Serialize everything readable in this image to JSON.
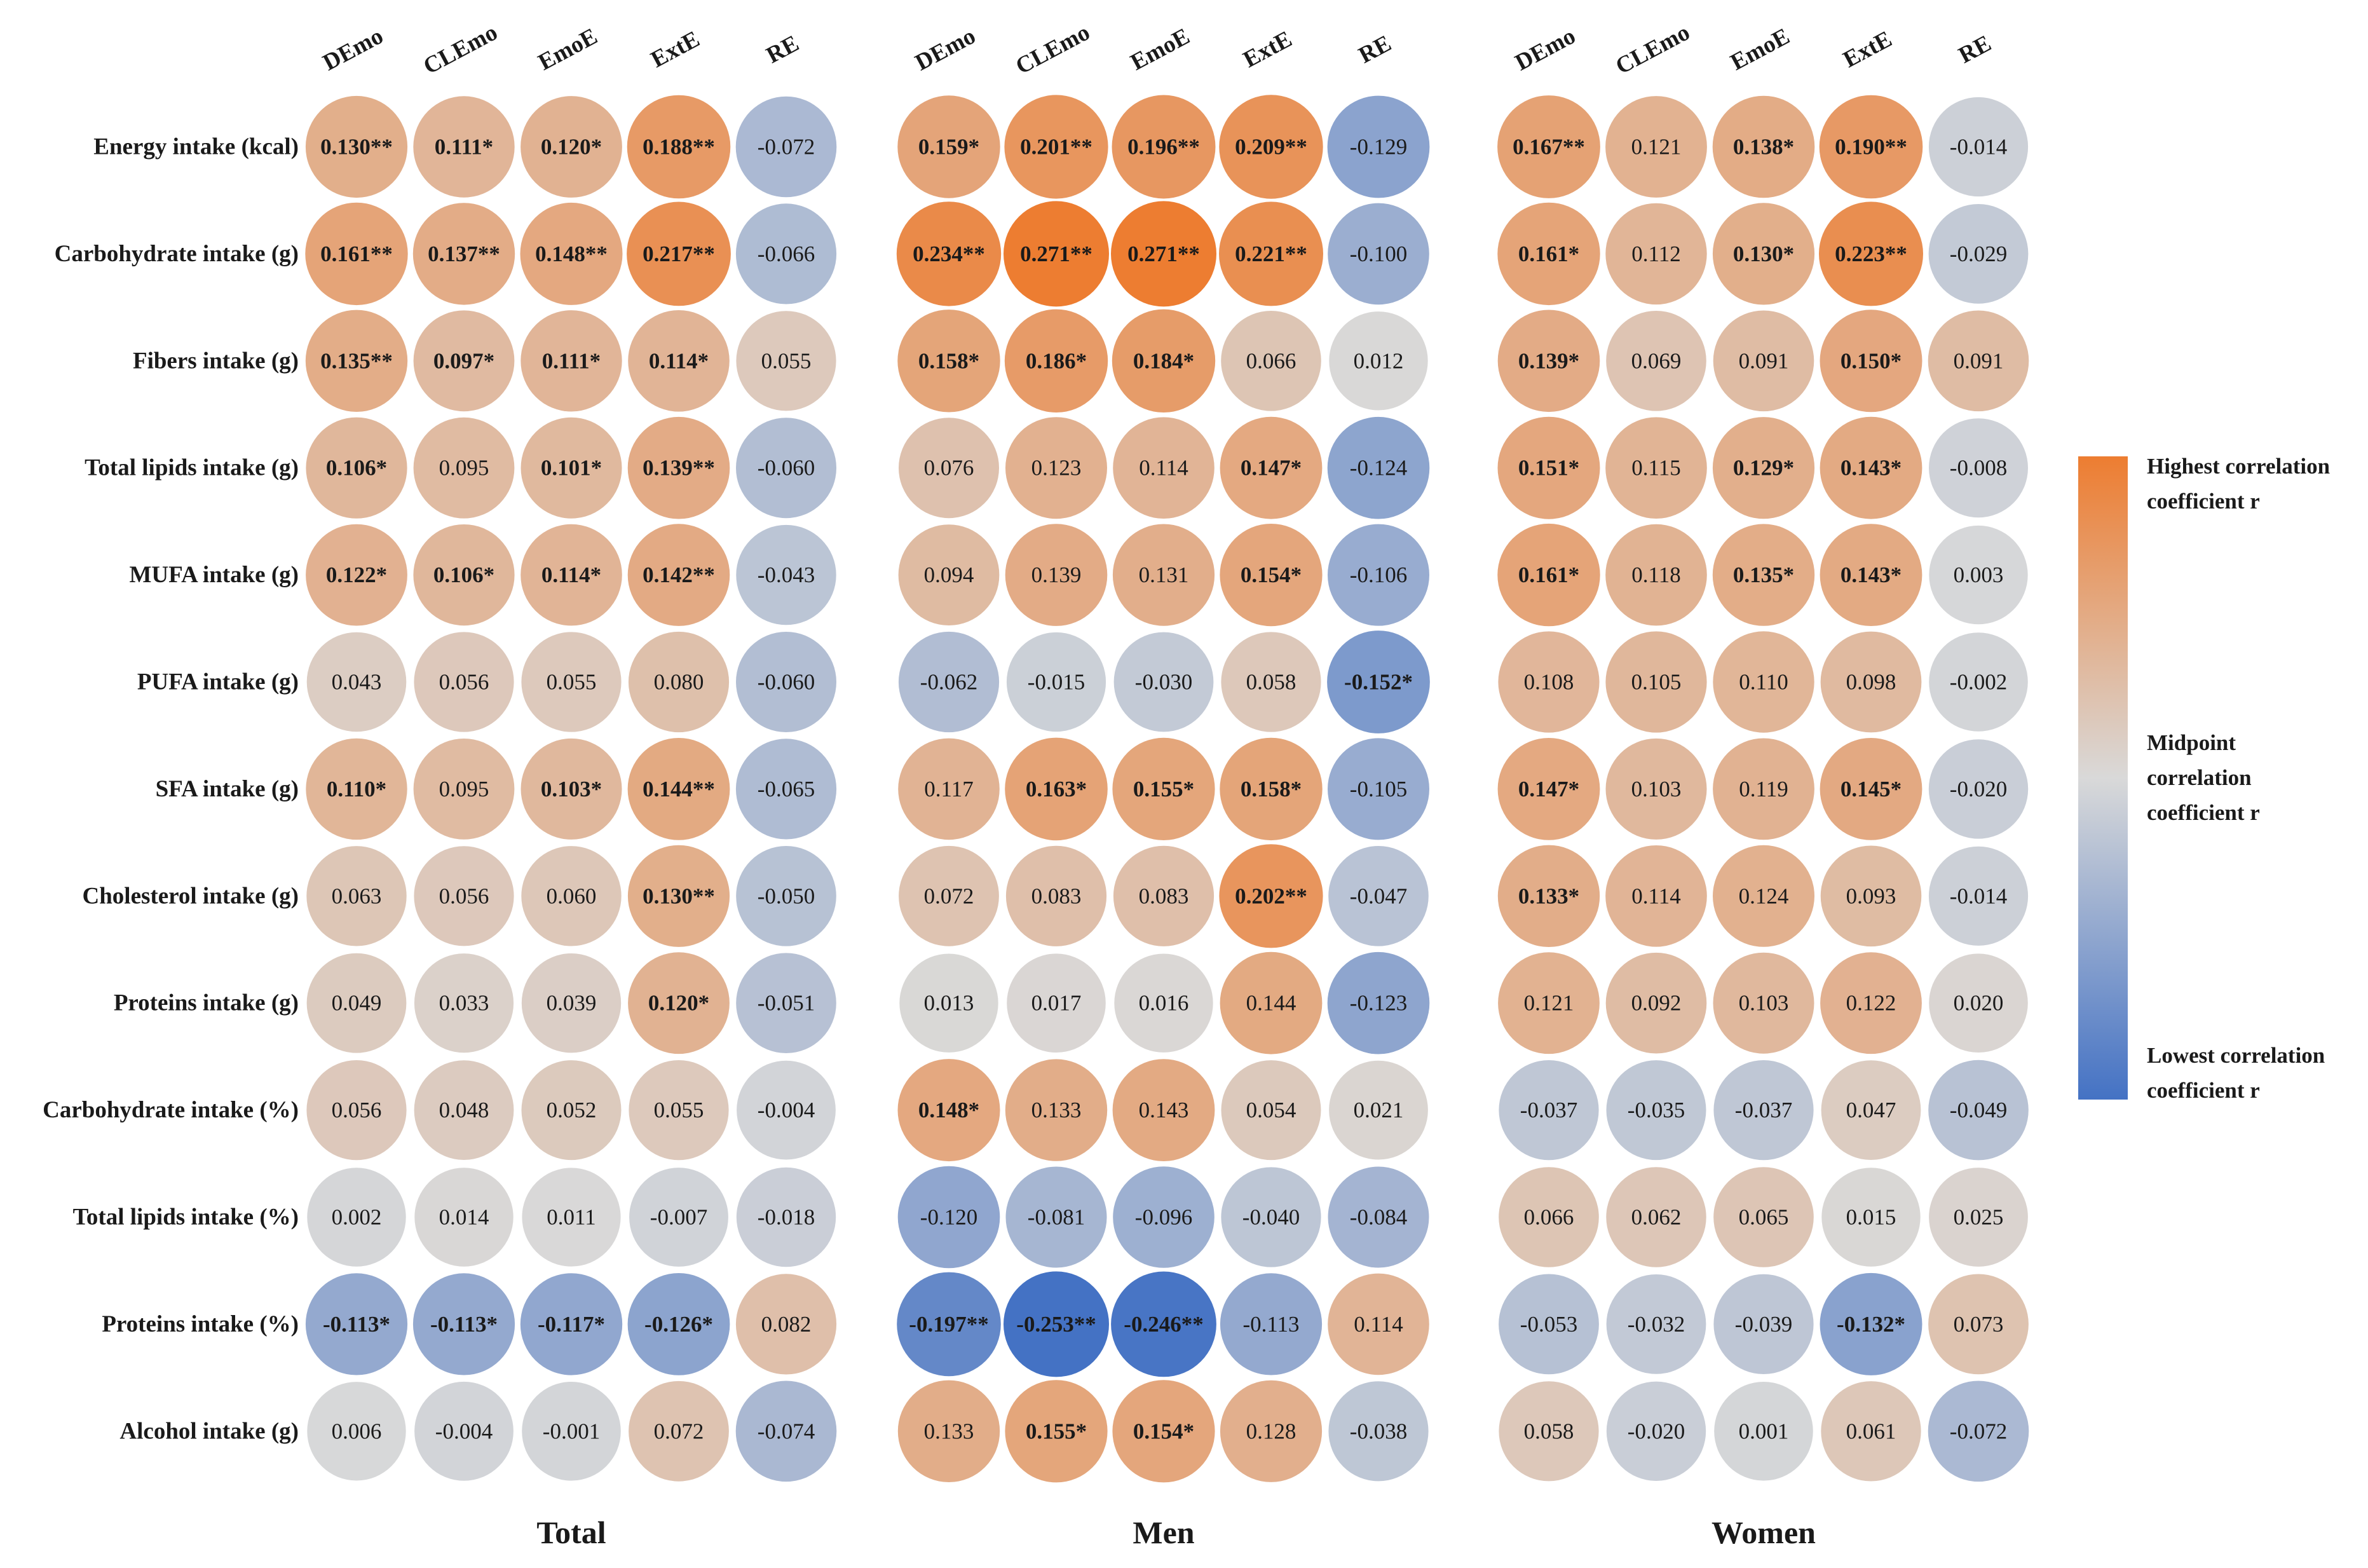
{
  "chart_data": {
    "type": "heatmap",
    "title": "",
    "columns": [
      "DEmo",
      "CLEmo",
      "EmoE",
      "ExtE",
      "RE"
    ],
    "rows": [
      "Energy intake (kcal)",
      "Carbohydrate intake (g)",
      "Fibers intake (g)",
      "Total lipids intake (g)",
      "MUFA intake (g)",
      "PUFA intake (g)",
      "SFA intake (g)",
      "Cholesterol intake (g)",
      "Proteins intake (g)",
      "Carbohydrate intake (%)",
      "Total lipids intake (%)",
      "Proteins intake (%)",
      "Alcohol intake (g)"
    ],
    "color_scale": {
      "high": "#ED7D31",
      "mid": "#D9D9D9",
      "low": "#4472C4"
    },
    "groups": [
      {
        "name": "Total",
        "labels": [
          [
            "0.130**",
            "0.111*",
            "0.120*",
            "0.188**",
            "-0.072"
          ],
          [
            "0.161**",
            "0.137**",
            "0.148**",
            "0.217**",
            "-0.066"
          ],
          [
            "0.135**",
            "0.097*",
            "0.111*",
            "0.114*",
            "0.055"
          ],
          [
            "0.106*",
            "0.095",
            "0.101*",
            "0.139**",
            "-0.060"
          ],
          [
            "0.122*",
            "0.106*",
            "0.114*",
            "0.142**",
            "-0.043"
          ],
          [
            "0.043",
            "0.056",
            "0.055",
            "0.080",
            "-0.060"
          ],
          [
            "0.110*",
            "0.095",
            "0.103*",
            "0.144**",
            "-0.065"
          ],
          [
            "0.063",
            "0.056",
            "0.060",
            "0.130**",
            "-0.050"
          ],
          [
            "0.049",
            "0.033",
            "0.039",
            "0.120*",
            "-0.051"
          ],
          [
            "0.056",
            "0.048",
            "0.052",
            "0.055",
            "-0.004"
          ],
          [
            "0.002",
            "0.014",
            "0.011",
            "-0.007",
            "-0.018"
          ],
          [
            "-0.113*",
            "-0.113*",
            "-0.117*",
            "-0.126*",
            "0.082"
          ],
          [
            "0.006",
            "-0.004",
            "-0.001",
            "0.072",
            "-0.074"
          ]
        ]
      },
      {
        "name": "Men",
        "labels": [
          [
            "0.159*",
            "0.201**",
            "0.196**",
            "0.209**",
            "-0.129"
          ],
          [
            "0.234**",
            "0.271**",
            "0.271**",
            "0.221**",
            "-0.100"
          ],
          [
            "0.158*",
            "0.186*",
            "0.184*",
            "0.066",
            "0.012"
          ],
          [
            "0.076",
            "0.123",
            "0.114",
            "0.147*",
            "-0.124"
          ],
          [
            "0.094",
            "0.139",
            "0.131",
            "0.154*",
            "-0.106"
          ],
          [
            "-0.062",
            "-0.015",
            "-0.030",
            "0.058",
            "-0.152*"
          ],
          [
            "0.117",
            "0.163*",
            "0.155*",
            "0.158*",
            "-0.105"
          ],
          [
            "0.072",
            "0.083",
            "0.083",
            "0.202**",
            "-0.047"
          ],
          [
            "0.013",
            "0.017",
            "0.016",
            "0.144",
            "-0.123"
          ],
          [
            "0.148*",
            "0.133",
            "0.143",
            "0.054",
            "0.021"
          ],
          [
            "-0.120",
            "-0.081",
            "-0.096",
            "-0.040",
            "-0.084"
          ],
          [
            "-0.197**",
            "-0.253**",
            "-0.246**",
            "-0.113",
            "0.114"
          ],
          [
            "0.133",
            "0.155*",
            "0.154*",
            "0.128",
            "-0.038"
          ]
        ]
      },
      {
        "name": "Women",
        "labels": [
          [
            "0.167**",
            "0.121",
            "0.138*",
            "0.190**",
            "-0.014"
          ],
          [
            "0.161*",
            "0.112",
            "0.130*",
            "0.223**",
            "-0.029"
          ],
          [
            "0.139*",
            "0.069",
            "0.091",
            "0.150*",
            "0.091"
          ],
          [
            "0.151*",
            "0.115",
            "0.129*",
            "0.143*",
            "-0.008"
          ],
          [
            "0.161*",
            "0.118",
            "0.135*",
            "0.143*",
            "0.003"
          ],
          [
            "0.108",
            "0.105",
            "0.110",
            "0.098",
            "-0.002"
          ],
          [
            "0.147*",
            "0.103",
            "0.119",
            "0.145*",
            "-0.020"
          ],
          [
            "0.133*",
            "0.114",
            "0.124",
            "0.093",
            "-0.014"
          ],
          [
            "0.121",
            "0.092",
            "0.103",
            "0.122",
            "0.020"
          ],
          [
            "-0.037",
            "-0.035",
            "-0.037",
            "0.047",
            "-0.049"
          ],
          [
            "0.066",
            "0.062",
            "0.065",
            "0.015",
            "0.025"
          ],
          [
            "-0.053",
            "-0.032",
            "-0.039",
            "-0.132*",
            "0.073"
          ],
          [
            "0.058",
            "-0.020",
            "0.001",
            "0.061",
            "-0.072"
          ]
        ]
      }
    ],
    "legend": {
      "high_label": [
        "Highest correlation",
        "coefficient r"
      ],
      "mid_label": [
        "Midpoint",
        "correlation",
        "coefficient r"
      ],
      "low_label": [
        "Lowest correlation",
        "coefficient r"
      ]
    }
  }
}
